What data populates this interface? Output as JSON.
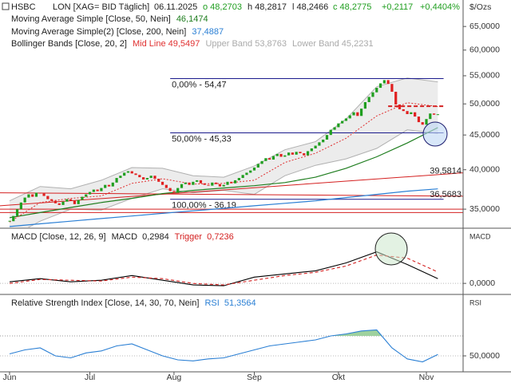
{
  "chart_data": [
    {
      "type": "candlestick",
      "symbol": "HSBC",
      "instrument": "LON [XAG= BID Täglich]",
      "date": "06.11.2025",
      "open_label": "o 48,2703",
      "high_label": "h 48,2817",
      "low_label": "l 48,2466",
      "close_label": "c 48,2775",
      "change_label": "+0,2117",
      "change_pct_label": "+0,4404%",
      "unit": "$/Ozs",
      "log": true,
      "ylim": [
        32.9,
        71.1
      ],
      "yticks": [
        {
          "value": 35,
          "label": "35,0000"
        },
        {
          "value": 40,
          "label": "40,0000"
        },
        {
          "value": 45,
          "label": "45,0000"
        },
        {
          "value": 50,
          "label": "50,0000"
        },
        {
          "value": 55,
          "label": "55,0000"
        },
        {
          "value": 60,
          "label": "60,0000"
        },
        {
          "value": 65,
          "label": "65,0000"
        }
      ],
      "xlim": [
        -2.5,
        118.6
      ],
      "xticks": [
        {
          "value": 0,
          "label": "Jun"
        },
        {
          "value": 21,
          "label": "Jul"
        },
        {
          "value": 43,
          "label": "Aug"
        },
        {
          "value": 64,
          "label": "Sep"
        },
        {
          "value": 86,
          "label": "Okt"
        },
        {
          "value": 109,
          "label": "Nov"
        }
      ],
      "up_color": "#1f9e1f",
      "down_color": "#e02020",
      "values": [
        33.6,
        34.2,
        35.0,
        35.8,
        36.4,
        36.8,
        36.5,
        37.0,
        36.9,
        36.6,
        36.2,
        36.0,
        35.7,
        35.5,
        35.9,
        36.2,
        36.0,
        35.6,
        36.1,
        36.5,
        36.8,
        37.1,
        37.4,
        37.2,
        37.6,
        38.0,
        37.8,
        38.3,
        38.9,
        39.2,
        39.6,
        39.8,
        39.5,
        39.3,
        39.0,
        38.7,
        38.9,
        39.2,
        38.8,
        38.4,
        38.0,
        37.6,
        37.2,
        37.0,
        37.6,
        38.1,
        38.3,
        38.0,
        38.4,
        38.6,
        38.2,
        38.0,
        37.9,
        38.3,
        38.1,
        37.8,
        38.0,
        38.4,
        38.2,
        38.6,
        38.9,
        39.3,
        39.6,
        39.9,
        40.3,
        40.8,
        41.2,
        41.6,
        41.4,
        41.9,
        42.2,
        41.8,
        42.0,
        42.4,
        42.1,
        42.5,
        42.3,
        42.0,
        42.6,
        43.0,
        43.4,
        43.9,
        44.3,
        45.0,
        45.8,
        46.2,
        46.8,
        47.2,
        47.6,
        48.1,
        48.6,
        48.0,
        49.2,
        50.3,
        51.2,
        52.0,
        52.8,
        53.6,
        54.2,
        53.5,
        52.1,
        49.9,
        49.1,
        48.8,
        48.3,
        48.6,
        47.9,
        47.0,
        46.6,
        47.5,
        48.4,
        48.2,
        48.2775
      ],
      "series": [
        {
          "name": "Moving Average Simple [Close, 50, Nein]",
          "value_label": "46,1474",
          "color": "#1e7d1e",
          "x": [
            0,
            8,
            16,
            24,
            32,
            40,
            48,
            56,
            64,
            72,
            80,
            88,
            96,
            104,
            112
          ],
          "values": [
            34.0,
            34.6,
            35.2,
            35.8,
            36.3,
            36.9,
            37.3,
            37.6,
            37.9,
            38.3,
            39.0,
            40.2,
            41.8,
            43.8,
            46.1474
          ]
        },
        {
          "name": "Moving Average Simple(2) [Close, 200, Nein]",
          "value_label": "37,4887",
          "color": "#2a7fd4",
          "x": [
            0,
            8,
            16,
            24,
            32,
            40,
            48,
            56,
            64,
            72,
            80,
            88,
            96,
            104,
            112
          ],
          "values": [
            33.0,
            33.3,
            33.6,
            33.9,
            34.2,
            34.5,
            34.8,
            35.1,
            35.4,
            35.7,
            36.0,
            36.4,
            36.8,
            37.2,
            37.4887
          ]
        }
      ],
      "bollinger": {
        "name": "Bollinger Bands [Close, 20, 2]",
        "mid_label": "Mid Line 49,5497",
        "upper_label": "Upper Band 53,8763",
        "lower_label": "Lower Band 45,2231",
        "mid_color": "#e03030",
        "band_color": "#b0b0b0",
        "fill_color": "#ececec",
        "x": [
          0,
          8,
          16,
          24,
          32,
          40,
          48,
          56,
          64,
          72,
          80,
          88,
          96,
          104,
          112
        ],
        "mid": [
          33.5,
          35.8,
          36.3,
          36.6,
          38.2,
          38.8,
          38.1,
          38.2,
          38.6,
          41.0,
          42.3,
          44.5,
          48.0,
          50.2,
          49.5497
        ],
        "upper": [
          36.0,
          37.8,
          37.5,
          38.6,
          40.3,
          40.2,
          39.2,
          39.0,
          40.5,
          42.8,
          44.0,
          47.5,
          53.0,
          54.6,
          53.8763
        ],
        "lower": [
          31.8,
          33.6,
          35.0,
          34.9,
          36.3,
          37.5,
          37.0,
          37.3,
          36.8,
          39.2,
          40.6,
          41.5,
          43.0,
          45.8,
          45.2231
        ]
      },
      "fib_color": "#1a1a8c",
      "fib_from": 42,
      "fib_to": 113.5,
      "fib_levels": [
        {
          "label": "0,00% - 54,47",
          "value": 54.47
        },
        {
          "label": "50,00% - 45,33",
          "value": 45.33
        },
        {
          "label": "100,00% - 36,19",
          "value": 36.19
        }
      ],
      "line_color": "#d42020",
      "trend_lines": [
        {
          "label": "39,5814",
          "start": 35.4,
          "end": 39.5814
        },
        {
          "label": "36,5683",
          "start": 37.0,
          "end": 36.5683
        }
      ],
      "levels": [
        35.0,
        34.6
      ],
      "resistance": {
        "value": 49.6,
        "from": 99,
        "to": 113.5
      }
    },
    {
      "type": "line",
      "title": "MACD [Close, 12, 26, 9]",
      "axis_label": "MACD",
      "ylim": [
        -0.65,
        3.45
      ],
      "yticks": [
        {
          "value": 0,
          "label": "0,0000"
        }
      ],
      "series": [
        {
          "name": "MACD",
          "value_label": "0,2984",
          "color": "#000000",
          "dash": false,
          "x": [
            0,
            8,
            16,
            24,
            32,
            40,
            48,
            56,
            64,
            72,
            80,
            88,
            96,
            104,
            112
          ],
          "values": [
            0.1,
            0.3,
            0.1,
            0.2,
            0.5,
            0.2,
            -0.1,
            -0.15,
            0.4,
            0.6,
            0.8,
            1.3,
            2.0,
            1.2,
            0.2984
          ]
        },
        {
          "name": "Trigger",
          "value_label": "0,7236",
          "color": "#d42020",
          "dash": true,
          "x": [
            0,
            8,
            16,
            24,
            32,
            40,
            48,
            56,
            64,
            72,
            80,
            88,
            96,
            104,
            112
          ],
          "values": [
            0.0,
            0.25,
            0.2,
            0.15,
            0.4,
            0.3,
            0.0,
            -0.1,
            0.2,
            0.5,
            0.7,
            1.1,
            1.8,
            1.6,
            0.7236
          ]
        }
      ]
    },
    {
      "type": "line",
      "title": "Relative Strength Index [Close, 14, 30, 70, Nein]",
      "axis_label": "RSI",
      "ylim": [
        34.8,
        110.8
      ],
      "yticks": [
        {
          "value": 50,
          "label": "50,0000"
        }
      ],
      "overbought": 70,
      "overbought_color": "#9ed19e",
      "series": [
        {
          "name": "RSI",
          "value_label": "51,3564",
          "color": "#2a7fd4",
          "x": [
            0,
            4,
            8,
            12,
            16,
            20,
            24,
            28,
            32,
            36,
            40,
            44,
            48,
            52,
            56,
            60,
            64,
            68,
            72,
            76,
            80,
            84,
            88,
            92,
            96,
            100,
            104,
            108,
            112
          ],
          "values": [
            52,
            56,
            58,
            50,
            48,
            53,
            55,
            60,
            62,
            56,
            50,
            46,
            45,
            47,
            48,
            52,
            56,
            60,
            62,
            64,
            66,
            70,
            72,
            75,
            76,
            58,
            47,
            44,
            51.3564
          ]
        }
      ]
    }
  ]
}
